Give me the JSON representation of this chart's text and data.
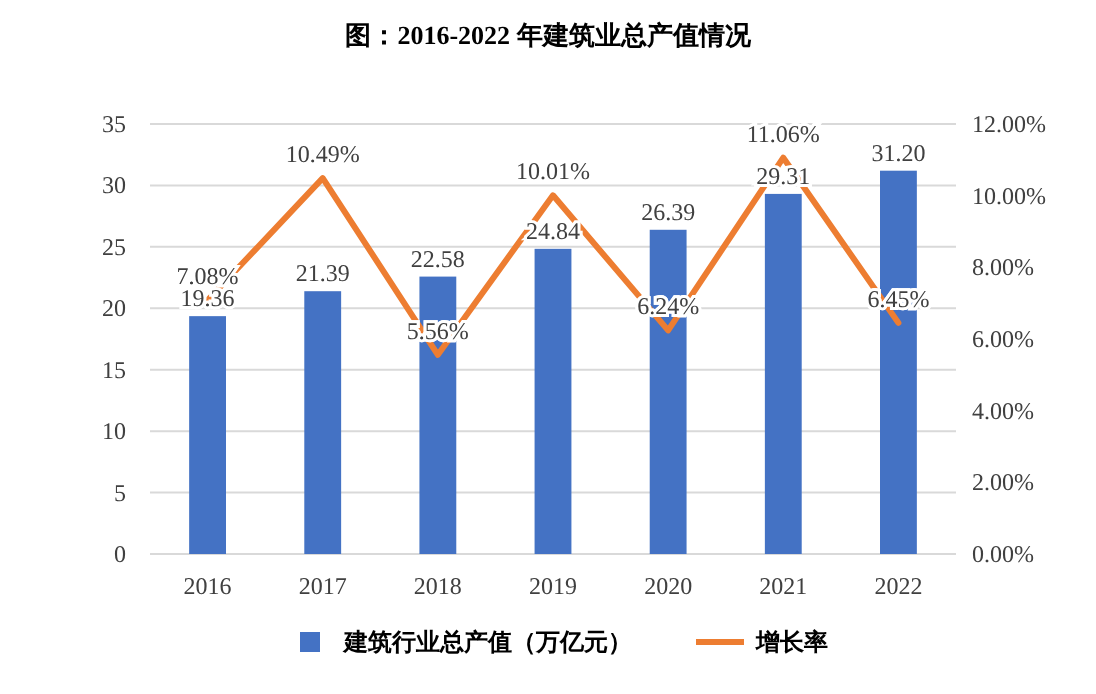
{
  "chart_data": {
    "type": "bar",
    "title": "图：2016-2022 年建筑业总产值情况",
    "categories": [
      "2016",
      "2017",
      "2018",
      "2019",
      "2020",
      "2021",
      "2022"
    ],
    "series": [
      {
        "name": "建筑行业总产值（万亿元）",
        "color": "#4472c4",
        "values": [
          19.36,
          21.39,
          22.58,
          24.84,
          26.39,
          29.31,
          31.2
        ],
        "value_labels": [
          "19.36",
          "21.39",
          "22.58",
          "24.84",
          "26.39",
          "29.31",
          "31.20"
        ]
      },
      {
        "name": "增长率",
        "type": "line",
        "axis": "y2",
        "color": "#ed7d31",
        "values": [
          7.08,
          10.49,
          5.56,
          10.01,
          6.24,
          11.06,
          6.45
        ],
        "value_labels": [
          "7.08%",
          "10.49%",
          "5.56%",
          "10.01%",
          "6.24%",
          "11.06%",
          "6.45%"
        ]
      }
    ],
    "ylim": [
      0,
      35
    ],
    "yticks": [
      0,
      5,
      10,
      15,
      20,
      25,
      30,
      35
    ],
    "y2lim": [
      0,
      12
    ],
    "y2ticks": [
      {
        "value": 0,
        "label": "0.00%"
      },
      {
        "value": 2,
        "label": "2.00%"
      },
      {
        "value": 4,
        "label": "4.00%"
      },
      {
        "value": 6,
        "label": "6.00%"
      },
      {
        "value": 8,
        "label": "8.00%"
      },
      {
        "value": 10,
        "label": "10.00%"
      },
      {
        "value": 12,
        "label": "12.00%"
      }
    ],
    "grid": "y",
    "legend": "bottom",
    "marker": "none",
    "line_style": "solid"
  }
}
